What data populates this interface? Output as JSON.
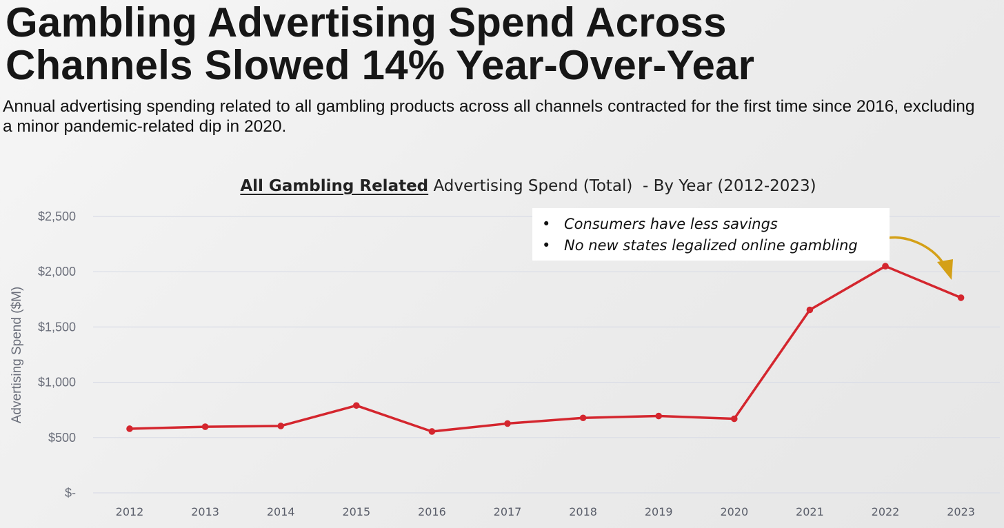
{
  "headline": {
    "line1": "Gambling Advertising Spend Across",
    "line2": "Channels Slowed 14% Year-Over-Year"
  },
  "subheadline": "Annual advertising spending related to all gambling products across all channels contracted for the first time since 2016, excluding a minor pandemic-related dip in 2020.",
  "annotation": {
    "bullets": [
      "Consumers have less savings",
      "No new states legalized online gambling"
    ]
  },
  "colors": {
    "line": "#d4262e",
    "arrow": "#d4a017",
    "gridline": "#d9dce6"
  },
  "chart_data": {
    "type": "line",
    "title_bold": "All Gambling Related",
    "title_rest": " Advertising Spend (Total)  - By Year (2012-2023)",
    "ylabel": "Advertising Spend ($M)",
    "xlabel": "",
    "categories": [
      "2012",
      "2013",
      "2014",
      "2015",
      "2016",
      "2017",
      "2018",
      "2019",
      "2020",
      "2021",
      "2022",
      "2023"
    ],
    "series": [
      {
        "values": [
          580,
          598,
          605,
          790,
          555,
          627,
          678,
          695,
          670,
          1655,
          2050,
          1765
        ]
      }
    ],
    "ylim": [
      0,
      2500
    ],
    "yticks": [
      0,
      500,
      1000,
      1500,
      2000,
      2500
    ],
    "ytick_labels": [
      "$-",
      "$500",
      "$1,000",
      "$1,500",
      "$2,000",
      "$2,500"
    ],
    "grid": true,
    "legend": "none"
  }
}
